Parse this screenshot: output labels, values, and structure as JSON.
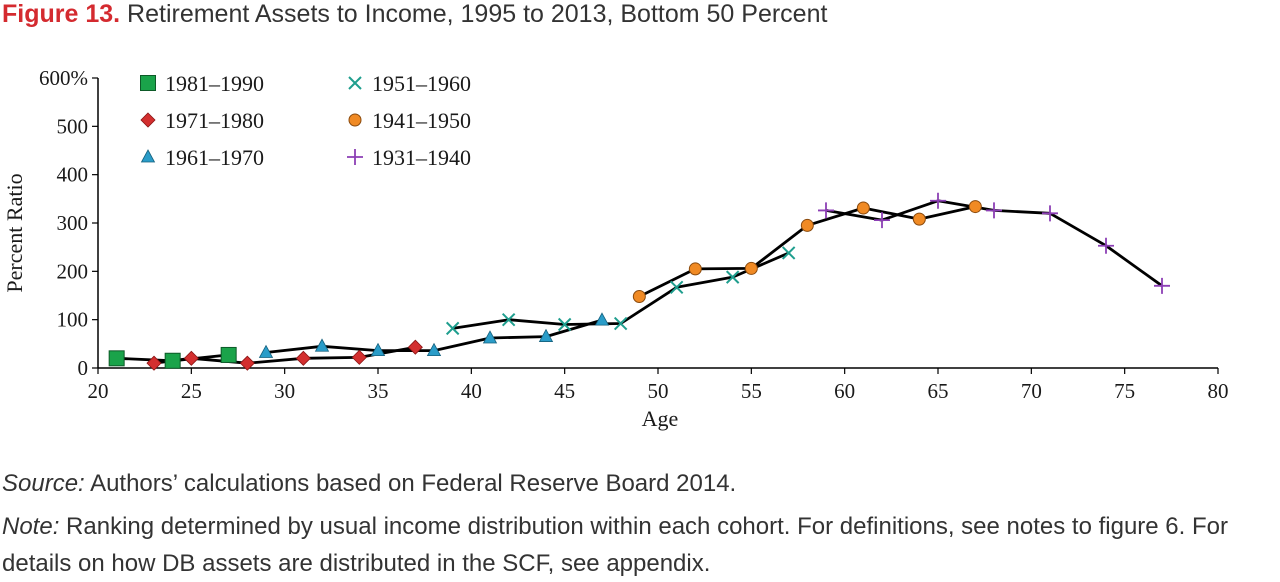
{
  "figure": {
    "label": "Figure 13.",
    "title": "Retirement Assets to Income, 1995 to 2013, Bottom 50 Percent"
  },
  "source": {
    "label": "Source:",
    "text": " Authors’ calculations based on Federal Reserve Board 2014."
  },
  "note": {
    "label": "Note:",
    "text": " Ranking determined by usual income distribution within each cohort. For definitions, see notes to figure 6. For details on how DB assets are distributed in the SCF, see appendix."
  },
  "colors": {
    "line": "#000000",
    "title_accent": "#d42a2f"
  },
  "chart_data": {
    "type": "line",
    "title": "Retirement Assets to Income, 1995 to 2013, Bottom 50 Percent",
    "xlabel": "Age",
    "ylabel": "Percent Ratio",
    "xlim": [
      20,
      80
    ],
    "ylim": [
      0,
      600
    ],
    "x_ticks": [
      20,
      25,
      30,
      35,
      40,
      45,
      50,
      55,
      60,
      65,
      70,
      75,
      80
    ],
    "y_ticks": [
      0,
      100,
      200,
      300,
      400,
      500,
      600
    ],
    "y_tick_labels": [
      "0",
      "100",
      "200",
      "300",
      "400",
      "500",
      "600%"
    ],
    "grid": false,
    "legend": "top-left",
    "series": [
      {
        "name": "1981–1990",
        "marker": "square",
        "color": "#1aa34a",
        "x": [
          21,
          24,
          27
        ],
        "y": [
          20,
          15,
          27
        ]
      },
      {
        "name": "1971–1980",
        "marker": "diamond",
        "color": "#d32f2f",
        "x": [
          23,
          25,
          28,
          31,
          34,
          37
        ],
        "y": [
          10,
          20,
          10,
          20,
          22,
          43
        ]
      },
      {
        "name": "1961–1970",
        "marker": "triangle",
        "color": "#2a9cc8",
        "x": [
          29,
          32,
          35,
          38,
          41,
          44,
          47
        ],
        "y": [
          32,
          45,
          36,
          36,
          62,
          65,
          99
        ]
      },
      {
        "name": "1951–1960",
        "marker": "x",
        "color": "#1f9e8e",
        "x": [
          39,
          42,
          45,
          48,
          51,
          54,
          57
        ],
        "y": [
          82,
          100,
          90,
          92,
          167,
          188,
          238
        ]
      },
      {
        "name": "1941–1950",
        "marker": "circle",
        "color": "#f08a24",
        "x": [
          49,
          52,
          55,
          58,
          61,
          64,
          67
        ],
        "y": [
          148,
          205,
          206,
          295,
          331,
          308,
          334
        ]
      },
      {
        "name": "1931–1940",
        "marker": "plus",
        "color": "#8c3fb5",
        "x": [
          59,
          62,
          65,
          68,
          71,
          74,
          77
        ],
        "y": [
          326,
          306,
          346,
          326,
          320,
          253,
          170
        ]
      }
    ]
  }
}
